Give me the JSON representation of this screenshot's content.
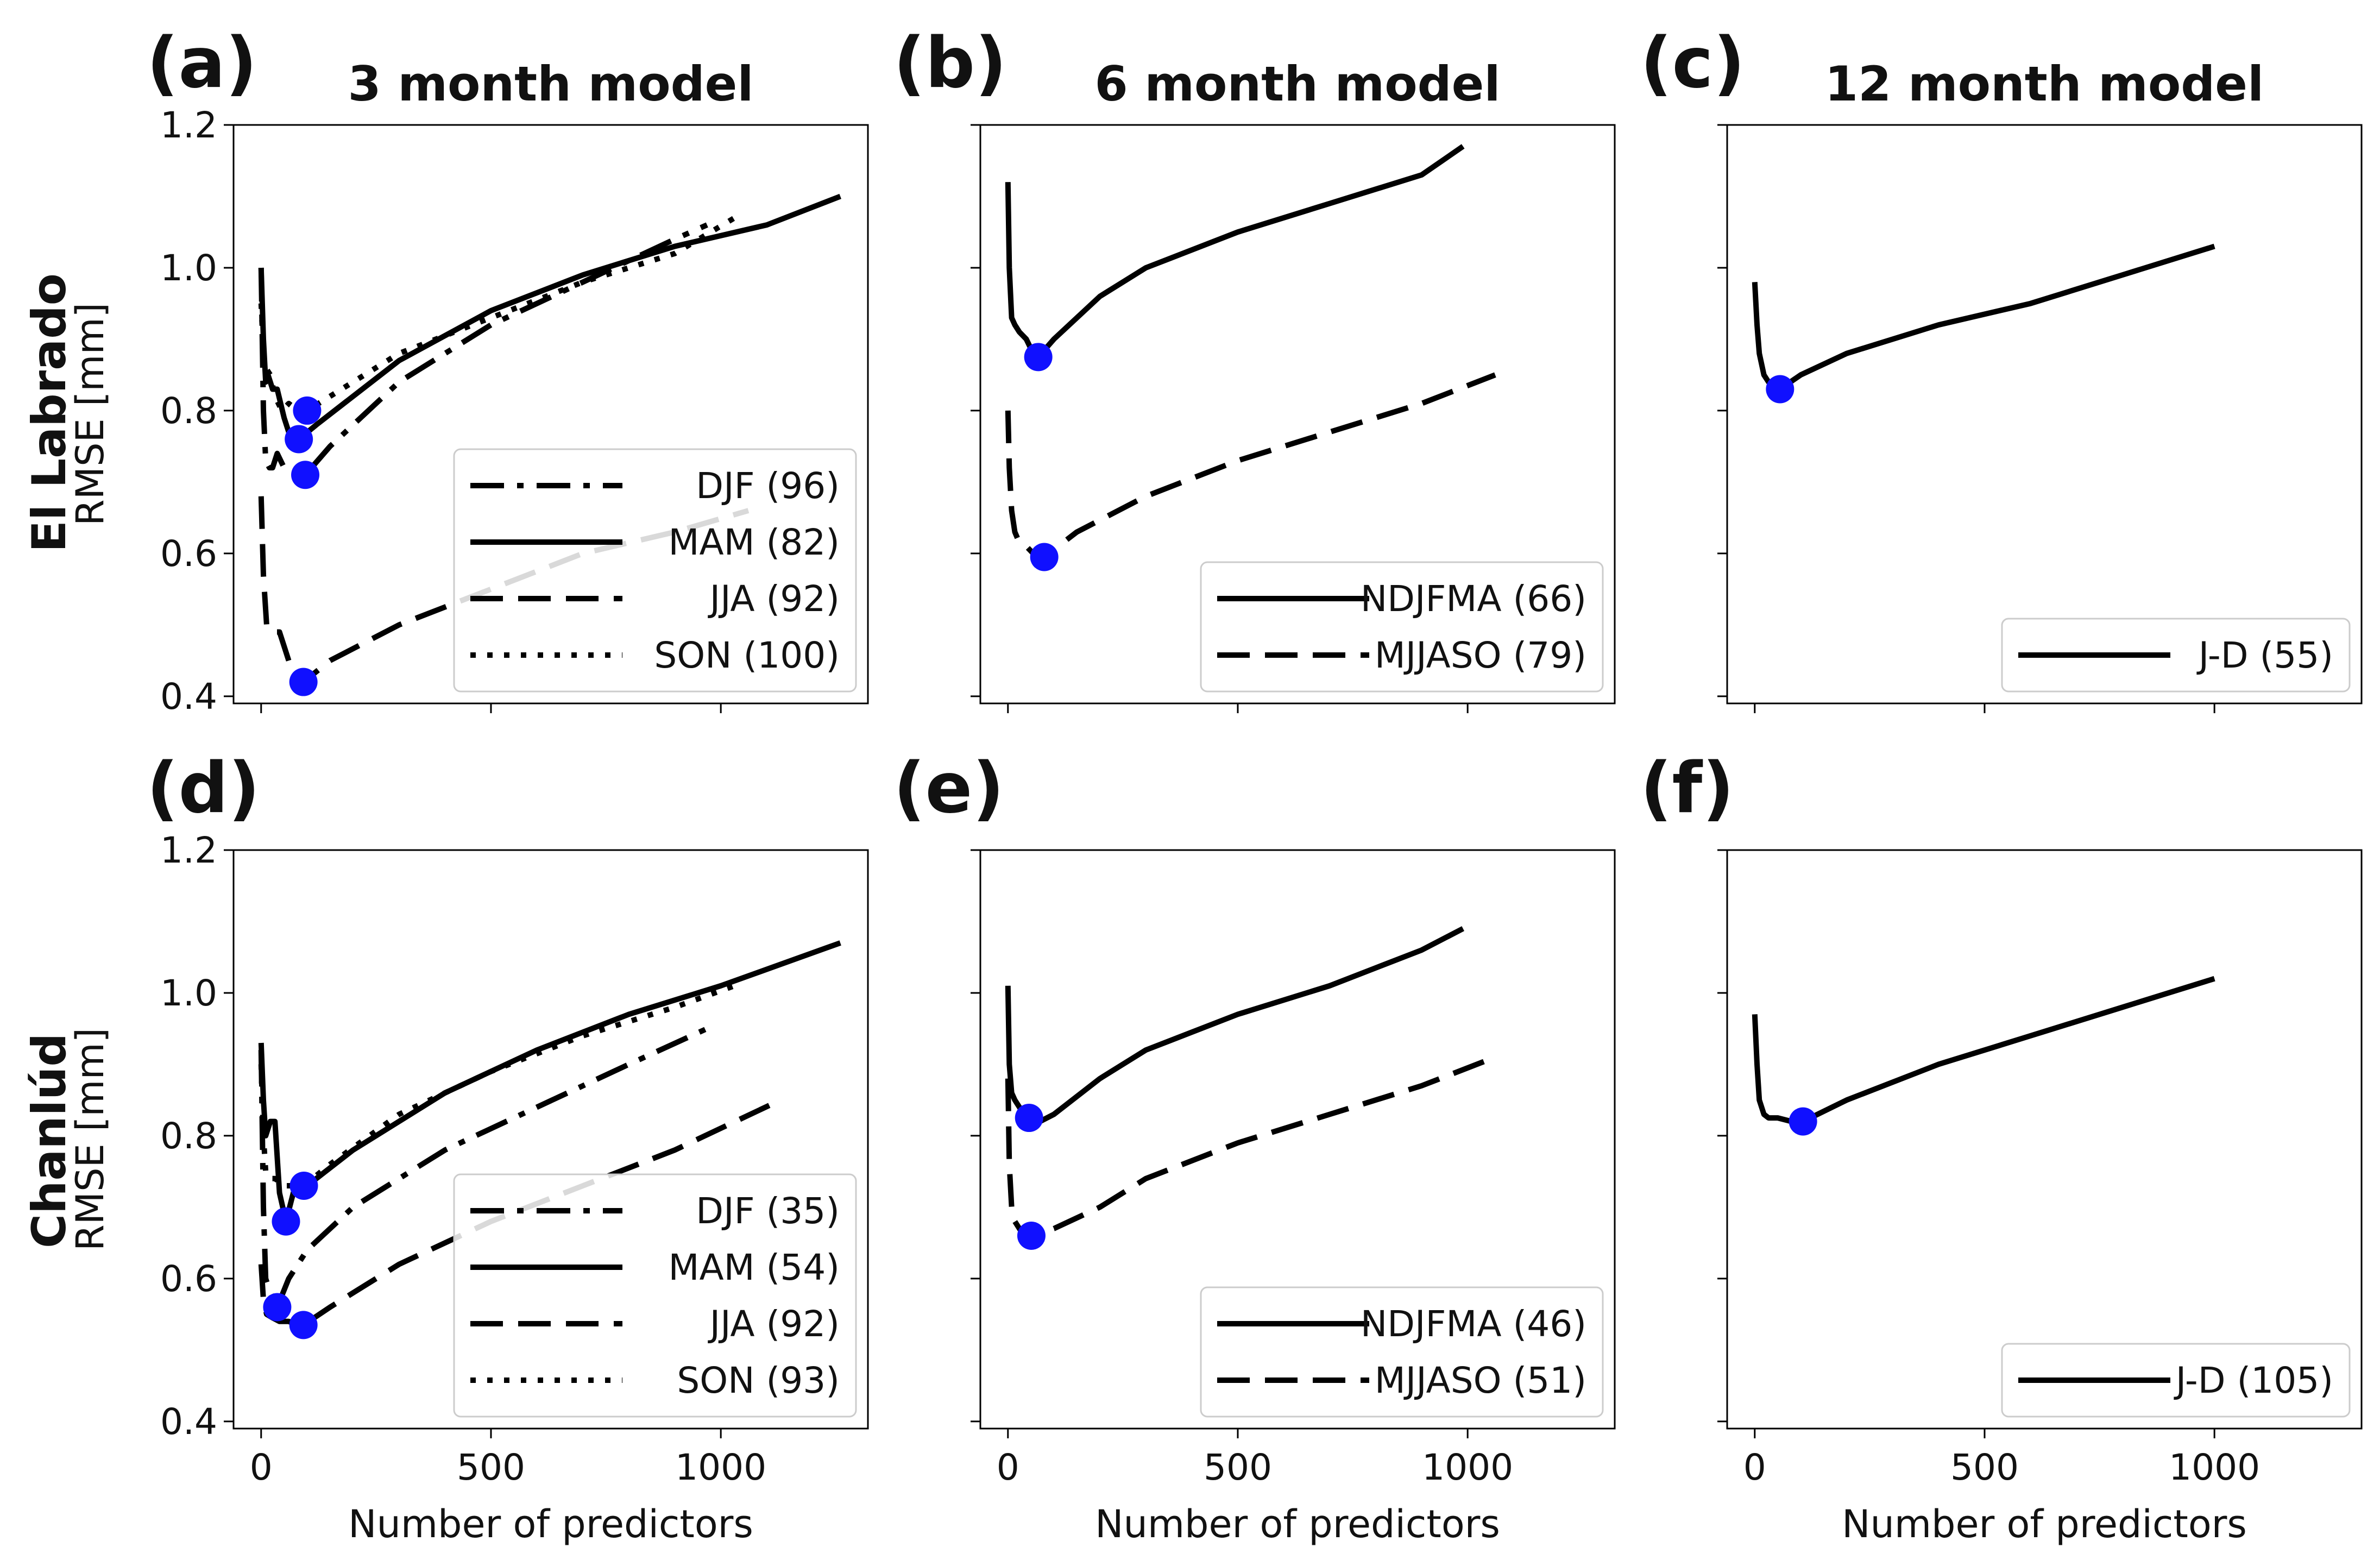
{
  "figure": {
    "row_labels": [
      "El Labrado",
      "Chanlúd"
    ],
    "ylabel": "RMSE [mm]",
    "xlabel": "Number of predictors",
    "marker_color": "#1010ff",
    "line_color": "#000000"
  },
  "chart_data": [
    {
      "type": "line",
      "panel": "(a)",
      "title": "3 month model",
      "legend_position": "lower-right",
      "xlim": [
        -60,
        1320
      ],
      "ylim": [
        0.39,
        1.2
      ],
      "xticks": [
        0,
        500,
        1000
      ],
      "yticks": [
        0.4,
        0.6,
        0.8,
        1.0,
        1.2
      ],
      "ytick_labels": [
        "0.4",
        "0.6",
        "0.8",
        "1.0",
        "1.2"
      ],
      "show_xtick_labels": false,
      "show_ytick_labels": true,
      "series": [
        {
          "name": "DJF (96)",
          "style": "dashdot",
          "optimum": [
            96,
            0.71
          ],
          "x": [
            0,
            5,
            10,
            18,
            25,
            35,
            50,
            70,
            96,
            150,
            300,
            500,
            700,
            900,
            970
          ],
          "y": [
            1.0,
            0.8,
            0.73,
            0.72,
            0.72,
            0.74,
            0.72,
            0.715,
            0.71,
            0.75,
            0.84,
            0.92,
            0.98,
            1.04,
            1.06
          ]
        },
        {
          "name": "MAM (82)",
          "style": "solid",
          "optimum": [
            82,
            0.76
          ],
          "x": [
            0,
            5,
            10,
            15,
            25,
            35,
            50,
            65,
            82,
            120,
            300,
            500,
            700,
            900,
            1100,
            1260
          ],
          "y": [
            1.0,
            0.9,
            0.84,
            0.85,
            0.83,
            0.83,
            0.79,
            0.76,
            0.76,
            0.78,
            0.87,
            0.94,
            0.99,
            1.03,
            1.06,
            1.1
          ]
        },
        {
          "name": "JJA (92)",
          "style": "dashed",
          "optimum": [
            92,
            0.42
          ],
          "x": [
            0,
            5,
            12,
            20,
            30,
            40,
            50,
            65,
            80,
            92,
            150,
            300,
            500,
            700,
            900,
            1060
          ],
          "y": [
            0.68,
            0.57,
            0.5,
            0.49,
            0.49,
            0.49,
            0.47,
            0.44,
            0.42,
            0.42,
            0.45,
            0.5,
            0.55,
            0.6,
            0.63,
            0.66
          ]
        },
        {
          "name": "SON (100)",
          "style": "dotted",
          "optimum": [
            100,
            0.8
          ],
          "x": [
            0,
            5,
            10,
            20,
            30,
            45,
            60,
            80,
            100,
            150,
            300,
            500,
            700,
            900,
            1030
          ],
          "y": [
            0.95,
            0.88,
            0.86,
            0.85,
            0.82,
            0.8,
            0.81,
            0.8,
            0.8,
            0.82,
            0.88,
            0.93,
            0.98,
            1.02,
            1.07
          ]
        }
      ]
    },
    {
      "type": "line",
      "panel": "(b)",
      "title": "6 month model",
      "legend_position": "lower-right",
      "xlim": [
        -60,
        1320
      ],
      "ylim": [
        0.39,
        1.2
      ],
      "xticks": [
        0,
        500,
        1000
      ],
      "yticks": [
        0.4,
        0.6,
        0.8,
        1.0,
        1.2
      ],
      "ytick_labels": [
        "0.4",
        "0.6",
        "0.8",
        "1.0",
        "1.2"
      ],
      "show_xtick_labels": false,
      "show_ytick_labels": false,
      "series": [
        {
          "name": "NDJFMA (66)",
          "style": "solid",
          "optimum": [
            66,
            0.875
          ],
          "x": [
            0,
            3,
            8,
            15,
            25,
            40,
            55,
            66,
            100,
            200,
            300,
            500,
            700,
            900,
            990
          ],
          "y": [
            1.12,
            1.0,
            0.93,
            0.92,
            0.91,
            0.9,
            0.88,
            0.875,
            0.9,
            0.96,
            1.0,
            1.05,
            1.09,
            1.13,
            1.17
          ]
        },
        {
          "name": "MJJASO (79)",
          "style": "dashed",
          "optimum": [
            79,
            0.595
          ],
          "x": [
            0,
            3,
            8,
            15,
            25,
            40,
            55,
            79,
            150,
            300,
            500,
            700,
            900,
            1060
          ],
          "y": [
            0.8,
            0.72,
            0.66,
            0.63,
            0.615,
            0.61,
            0.6,
            0.595,
            0.63,
            0.68,
            0.73,
            0.77,
            0.81,
            0.85
          ]
        }
      ]
    },
    {
      "type": "line",
      "panel": "(c)",
      "title": "12 month model",
      "legend_position": "lower-right",
      "xlim": [
        -60,
        1320
      ],
      "ylim": [
        0.39,
        1.2
      ],
      "xticks": [
        0,
        500,
        1000
      ],
      "yticks": [
        0.4,
        0.6,
        0.8,
        1.0,
        1.2
      ],
      "ytick_labels": [
        "0.4",
        "0.6",
        "0.8",
        "1.0",
        "1.2"
      ],
      "show_xtick_labels": false,
      "show_ytick_labels": false,
      "series": [
        {
          "name": "J-D (55)",
          "style": "solid",
          "optimum": [
            55,
            0.83
          ],
          "x": [
            0,
            5,
            10,
            20,
            30,
            40,
            55,
            100,
            200,
            400,
            600,
            800,
            1000
          ],
          "y": [
            0.98,
            0.92,
            0.88,
            0.85,
            0.84,
            0.835,
            0.83,
            0.85,
            0.88,
            0.92,
            0.95,
            0.99,
            1.03
          ]
        }
      ]
    },
    {
      "type": "line",
      "panel": "(d)",
      "title": "",
      "legend_position": "lower-right",
      "xlim": [
        -60,
        1320
      ],
      "ylim": [
        0.39,
        1.2
      ],
      "xticks": [
        0,
        500,
        1000
      ],
      "yticks": [
        0.4,
        0.6,
        0.8,
        1.0,
        1.2
      ],
      "xtick_labels": [
        "0",
        "500",
        "1000"
      ],
      "ytick_labels": [
        "0.4",
        "0.6",
        "0.8",
        "1.0",
        "1.2"
      ],
      "show_xtick_labels": true,
      "show_ytick_labels": true,
      "series": [
        {
          "name": "DJF (35)",
          "style": "dashdot",
          "optimum": [
            35,
            0.56
          ],
          "x": [
            0,
            5,
            10,
            20,
            35,
            60,
            100,
            200,
            400,
            600,
            800,
            970
          ],
          "y": [
            0.92,
            0.7,
            0.6,
            0.58,
            0.56,
            0.6,
            0.64,
            0.7,
            0.78,
            0.84,
            0.9,
            0.95
          ]
        },
        {
          "name": "MAM (54)",
          "style": "solid",
          "optimum": [
            54,
            0.68
          ],
          "x": [
            0,
            5,
            10,
            20,
            30,
            40,
            54,
            70,
            100,
            200,
            400,
            600,
            800,
            1000,
            1260
          ],
          "y": [
            0.93,
            0.85,
            0.8,
            0.82,
            0.82,
            0.72,
            0.68,
            0.72,
            0.73,
            0.78,
            0.86,
            0.92,
            0.97,
            1.01,
            1.07
          ]
        },
        {
          "name": "JJA (92)",
          "style": "dashed",
          "optimum": [
            92,
            0.535
          ],
          "x": [
            0,
            5,
            12,
            25,
            40,
            60,
            80,
            92,
            150,
            300,
            500,
            700,
            900,
            1130
          ],
          "y": [
            0.62,
            0.57,
            0.55,
            0.545,
            0.54,
            0.54,
            0.535,
            0.535,
            0.56,
            0.62,
            0.68,
            0.73,
            0.78,
            0.85
          ]
        },
        {
          "name": "SON (93)",
          "style": "dotted",
          "optimum": [
            93,
            0.73
          ],
          "x": [
            0,
            5,
            10,
            20,
            30,
            50,
            70,
            93,
            150,
            300,
            500,
            700,
            900,
            1030
          ],
          "y": [
            0.9,
            0.8,
            0.75,
            0.74,
            0.74,
            0.73,
            0.73,
            0.73,
            0.76,
            0.83,
            0.89,
            0.94,
            0.98,
            1.01
          ]
        }
      ]
    },
    {
      "type": "line",
      "panel": "(e)",
      "title": "",
      "legend_position": "lower-right",
      "xlim": [
        -60,
        1320
      ],
      "ylim": [
        0.39,
        1.2
      ],
      "xticks": [
        0,
        500,
        1000
      ],
      "yticks": [
        0.4,
        0.6,
        0.8,
        1.0,
        1.2
      ],
      "xtick_labels": [
        "0",
        "500",
        "1000"
      ],
      "ytick_labels": [
        "0.4",
        "0.6",
        "0.8",
        "1.0",
        "1.2"
      ],
      "show_xtick_labels": true,
      "show_ytick_labels": false,
      "series": [
        {
          "name": "NDJFMA (46)",
          "style": "solid",
          "optimum": [
            46,
            0.825
          ],
          "x": [
            0,
            3,
            8,
            15,
            25,
            35,
            46,
            70,
            100,
            200,
            300,
            500,
            700,
            900,
            990
          ],
          "y": [
            1.01,
            0.9,
            0.86,
            0.85,
            0.84,
            0.83,
            0.825,
            0.82,
            0.83,
            0.88,
            0.92,
            0.97,
            1.01,
            1.06,
            1.09
          ]
        },
        {
          "name": "MJJASO (51)",
          "style": "dashed",
          "optimum": [
            51,
            0.66
          ],
          "x": [
            0,
            3,
            8,
            15,
            25,
            35,
            51,
            100,
            200,
            300,
            500,
            700,
            900,
            1060
          ],
          "y": [
            0.88,
            0.76,
            0.7,
            0.68,
            0.67,
            0.66,
            0.66,
            0.67,
            0.7,
            0.74,
            0.79,
            0.83,
            0.87,
            0.91
          ]
        }
      ]
    },
    {
      "type": "line",
      "panel": "(f)",
      "title": "",
      "legend_position": "lower-right",
      "xlim": [
        -60,
        1320
      ],
      "ylim": [
        0.39,
        1.2
      ],
      "xticks": [
        0,
        500,
        1000
      ],
      "yticks": [
        0.4,
        0.6,
        0.8,
        1.0,
        1.2
      ],
      "xtick_labels": [
        "0",
        "500",
        "1000"
      ],
      "ytick_labels": [
        "0.4",
        "0.6",
        "0.8",
        "1.0",
        "1.2"
      ],
      "show_xtick_labels": true,
      "show_ytick_labels": false,
      "series": [
        {
          "name": "J-D (105)",
          "style": "solid",
          "optimum": [
            105,
            0.82
          ],
          "x": [
            0,
            5,
            10,
            20,
            30,
            50,
            80,
            105,
            200,
            400,
            600,
            800,
            1000
          ],
          "y": [
            0.97,
            0.9,
            0.85,
            0.83,
            0.825,
            0.825,
            0.82,
            0.82,
            0.85,
            0.9,
            0.94,
            0.98,
            1.02
          ]
        }
      ]
    }
  ]
}
